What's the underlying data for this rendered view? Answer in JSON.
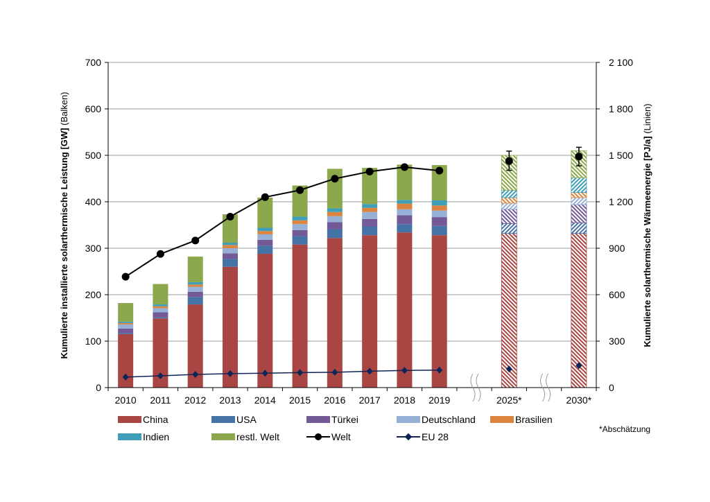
{
  "chart_data": {
    "type": "bar",
    "subtype": "stacked bar with line overlay (secondary axis)",
    "categories": [
      "2010",
      "2011",
      "2012",
      "2013",
      "2014",
      "2015",
      "2016",
      "2017",
      "2018",
      "2019",
      "2025*",
      "2030*"
    ],
    "estimated_categories": [
      "2025*",
      "2030*"
    ],
    "axis_breaks": "between 2019 and 2025*, and between 2025* and 2030*",
    "ylabel_left": "Kumulierte installierte solarthermische Leistung [GW]",
    "ylabel_left_suffix": "(Balken)",
    "ylabel_right": "Kumulierte solarthermische Wärmeenergie [PJ/a]",
    "ylabel_right_suffix": "(Linien)",
    "ylim_left": [
      0,
      700
    ],
    "yticks_left": [
      "0",
      "100",
      "200",
      "300",
      "400",
      "500",
      "600",
      "700"
    ],
    "ylim_right": [
      0,
      2100
    ],
    "yticks_right": [
      "0",
      "300",
      "600",
      "900",
      "1 200",
      "1 500",
      "1 800",
      "2 100"
    ],
    "grid": true,
    "legend_position": "bottom",
    "series": [
      {
        "name": "China",
        "axis": "left",
        "kind": "bar",
        "color": "#A94643",
        "values": [
          115,
          149,
          179,
          260,
          288,
          308,
          322,
          328,
          334,
          328,
          332,
          332
        ]
      },
      {
        "name": "USA",
        "axis": "left",
        "kind": "bar",
        "color": "#4573A7",
        "values": [
          2,
          2,
          16,
          17,
          17,
          18,
          19,
          19,
          18,
          20,
          21,
          23
        ]
      },
      {
        "name": "Türkei",
        "axis": "left",
        "kind": "bar",
        "color": "#735A97",
        "values": [
          10,
          11,
          11,
          12,
          13,
          13,
          15,
          16,
          19,
          19,
          31,
          39
        ]
      },
      {
        "name": "Deutschland",
        "axis": "left",
        "kind": "bar",
        "color": "#97B1D6",
        "values": [
          9,
          9,
          11,
          11,
          12,
          13,
          13,
          15,
          13,
          14,
          13,
          15
        ]
      },
      {
        "name": "Brasilien",
        "axis": "left",
        "kind": "bar",
        "color": "#DB843D",
        "values": [
          3,
          4,
          5,
          7,
          7,
          8,
          9,
          9,
          12,
          11,
          12,
          11
        ]
      },
      {
        "name": "Indien",
        "axis": "left",
        "kind": "bar",
        "color": "#3E9EB8",
        "values": [
          3,
          4,
          5,
          5,
          7,
          8,
          8,
          8,
          8,
          11,
          16,
          32
        ]
      },
      {
        "name": "restl. Welt",
        "axis": "left",
        "kind": "bar",
        "color": "#8BA84C",
        "values": [
          40,
          44,
          55,
          61,
          65,
          67,
          85,
          78,
          76,
          76,
          75,
          58
        ]
      },
      {
        "name": "Welt",
        "axis": "right",
        "kind": "line",
        "marker": "circle",
        "color": "#000000",
        "values": [
          716,
          863,
          950,
          1104,
          1230,
          1275,
          1349,
          1395,
          1424,
          1401,
          1463,
          1492
        ],
        "error_bars": {
          "2025*": [
            1403,
            1527
          ],
          "2030*": [
            1432,
            1552
          ]
        }
      },
      {
        "name": "EU 28",
        "axis": "right",
        "kind": "line",
        "marker": "diamond",
        "color": "#0F2557",
        "values": [
          68,
          76,
          85,
          90,
          93,
          97,
          99,
          106,
          111,
          113,
          120,
          142
        ]
      }
    ],
    "footnote": "*Abschätzung"
  }
}
